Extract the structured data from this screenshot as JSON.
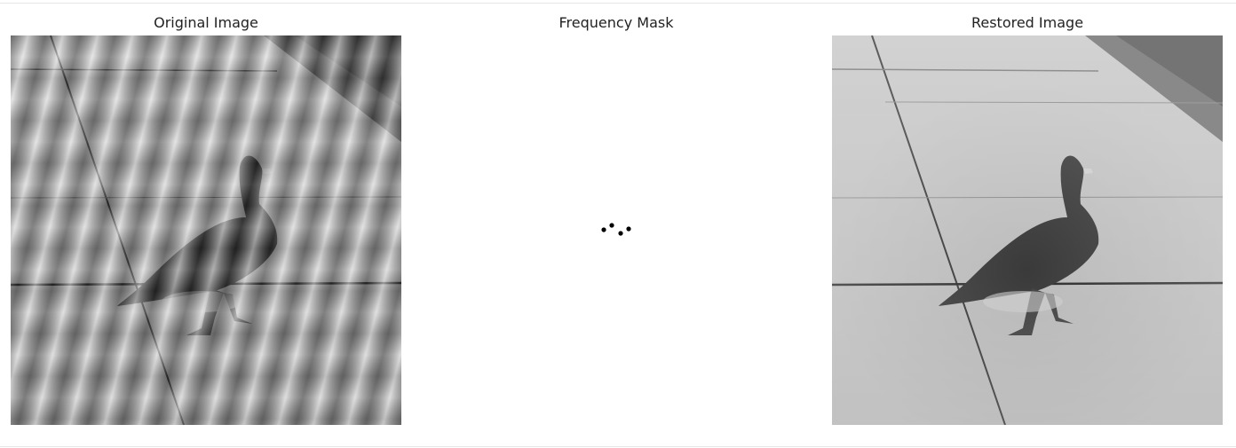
{
  "panels": [
    {
      "title": "Original Image"
    },
    {
      "title": "Frequency Mask"
    },
    {
      "title": "Restored Image"
    }
  ]
}
